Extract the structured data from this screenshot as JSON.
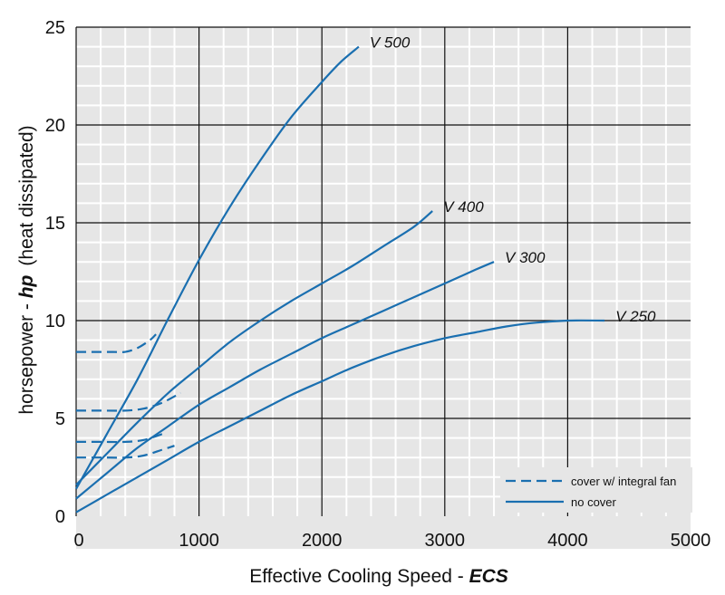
{
  "chart_data": {
    "type": "line",
    "title": "",
    "xlabel": "Effective Cooling Speed",
    "xlabel_italic": "ECS",
    "xlabel_sep": " - ",
    "ylabel": "horsepower - ",
    "ylabel_italic": "hp",
    "ylabel_suffix": "(heat dissipated)",
    "xlim": [
      0,
      5000
    ],
    "ylim": [
      0,
      25
    ],
    "x_ticks": [
      0,
      1000,
      2000,
      3000,
      4000,
      5000
    ],
    "y_ticks": [
      0,
      5,
      10,
      15,
      20,
      25
    ],
    "grid": true,
    "legend_position": "bottom-right",
    "legend": [
      {
        "label": "cover w/ integral fan",
        "style": "dashed"
      },
      {
        "label": "no cover",
        "style": "solid"
      }
    ],
    "colors": {
      "line": "#1a6fb0",
      "plot_bg": "#e6e6e6",
      "minor_grid": "#ffffff",
      "major_grid": "#111111"
    },
    "series": [
      {
        "name": "V 500",
        "style": "solid",
        "x": [
          0,
          250,
          500,
          750,
          1000,
          1250,
          1500,
          1750,
          2000,
          2150,
          2300
        ],
        "y": [
          1.4,
          4.2,
          7.0,
          10.1,
          13.1,
          15.8,
          18.2,
          20.4,
          22.2,
          23.2,
          24.0
        ]
      },
      {
        "name": "V 400",
        "style": "solid",
        "x": [
          0,
          250,
          500,
          750,
          1000,
          1250,
          1500,
          1750,
          2000,
          2250,
          2500,
          2750,
          2900
        ],
        "y": [
          1.6,
          3.2,
          4.8,
          6.3,
          7.6,
          8.9,
          10.0,
          11.0,
          11.9,
          12.8,
          13.8,
          14.8,
          15.6
        ]
      },
      {
        "name": "V 300",
        "style": "solid",
        "x": [
          0,
          250,
          500,
          750,
          1000,
          1250,
          1500,
          1750,
          2000,
          2250,
          2500,
          2750,
          3000,
          3250,
          3400
        ],
        "y": [
          0.9,
          2.2,
          3.5,
          4.6,
          5.7,
          6.6,
          7.5,
          8.3,
          9.1,
          9.8,
          10.5,
          11.2,
          11.9,
          12.6,
          13.0
        ]
      },
      {
        "name": "V 250",
        "style": "solid",
        "x": [
          0,
          250,
          500,
          750,
          1000,
          1250,
          1500,
          1750,
          2000,
          2250,
          2500,
          2750,
          3000,
          3250,
          3500,
          3750,
          4000,
          4300
        ],
        "y": [
          0.2,
          1.1,
          2.0,
          2.9,
          3.8,
          4.6,
          5.4,
          6.2,
          6.9,
          7.6,
          8.2,
          8.7,
          9.1,
          9.4,
          9.7,
          9.9,
          10.0,
          10.0
        ]
      },
      {
        "name": "V 500 cover w/ integral fan",
        "style": "dashed",
        "x": [
          0,
          100,
          200,
          300,
          400,
          500,
          600,
          650
        ],
        "y": [
          8.4,
          8.4,
          8.4,
          8.4,
          8.4,
          8.6,
          9.0,
          9.3
        ]
      },
      {
        "name": "V 400 cover w/ integral fan",
        "style": "dashed",
        "x": [
          0,
          200,
          400,
          550,
          700,
          850
        ],
        "y": [
          5.4,
          5.4,
          5.4,
          5.5,
          5.8,
          6.3
        ]
      },
      {
        "name": "V 300 cover w/ integral fan",
        "style": "dashed",
        "x": [
          0,
          200,
          400,
          550,
          700
        ],
        "y": [
          3.8,
          3.8,
          3.8,
          3.9,
          4.2
        ]
      },
      {
        "name": "V 250 cover w/ integral fan",
        "style": "dashed",
        "x": [
          0,
          200,
          400,
          550,
          700,
          800
        ],
        "y": [
          3.0,
          3.0,
          3.0,
          3.1,
          3.4,
          3.6
        ]
      }
    ],
    "series_labels": [
      {
        "text": "V 500",
        "at_x": 2300,
        "at_y": 24.0
      },
      {
        "text": "V 400",
        "at_x": 2900,
        "at_y": 15.6
      },
      {
        "text": "V 300",
        "at_x": 3400,
        "at_y": 13.0
      },
      {
        "text": "V 250",
        "at_x": 4300,
        "at_y": 10.0
      }
    ]
  }
}
